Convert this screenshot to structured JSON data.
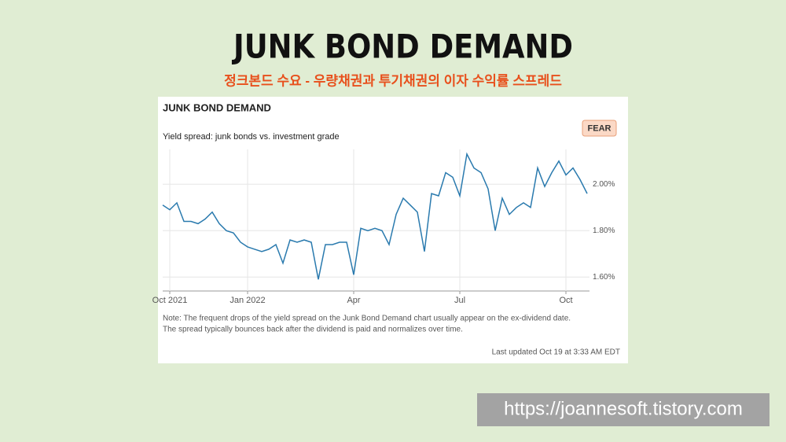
{
  "header": {
    "title": "JUNK BOND DEMAND",
    "subtitle": "정크본드 수요 - 우량채권과 투기채권의 이자 수익률 스프레드"
  },
  "chart_data": {
    "type": "line",
    "title": "JUNK BOND DEMAND",
    "subtitle": "Yield spread: junk bonds vs. investment grade",
    "badge": "FEAR",
    "categories": [
      null,
      "Oct 2021",
      null,
      null,
      null,
      null,
      null,
      null,
      null,
      null,
      null,
      null,
      "Jan 2022",
      null,
      null,
      null,
      null,
      null,
      null,
      null,
      null,
      null,
      null,
      null,
      null,
      null,
      null,
      "Apr",
      null,
      null,
      null,
      null,
      null,
      null,
      null,
      null,
      null,
      null,
      null,
      null,
      null,
      null,
      "Jul",
      null,
      null,
      null,
      null,
      null,
      null,
      null,
      null,
      null,
      null,
      null,
      null,
      null,
      null,
      "Oct",
      null,
      null,
      null
    ],
    "series": [
      {
        "name": "Yield spread",
        "color": "#2a7aae",
        "values": [
          1.91,
          1.89,
          1.92,
          1.84,
          1.84,
          1.83,
          1.85,
          1.88,
          1.83,
          1.8,
          1.79,
          1.75,
          1.73,
          1.72,
          1.71,
          1.72,
          1.74,
          1.66,
          1.76,
          1.75,
          1.76,
          1.75,
          1.59,
          1.74,
          1.74,
          1.75,
          1.75,
          1.61,
          1.81,
          1.8,
          1.81,
          1.8,
          1.74,
          1.87,
          1.94,
          1.91,
          1.88,
          1.71,
          1.96,
          1.95,
          2.05,
          2.03,
          1.95,
          2.13,
          2.07,
          2.05,
          1.98,
          1.8,
          1.94,
          1.87,
          1.9,
          1.92,
          1.9,
          2.07,
          1.99,
          2.05,
          2.1,
          2.04,
          2.07,
          2.02,
          1.96
        ]
      }
    ],
    "ylim": [
      1.54,
      2.15
    ],
    "yticks": [
      {
        "value": 1.6,
        "label": "1.60%"
      },
      {
        "value": 1.8,
        "label": "1.80%"
      },
      {
        "value": 2.0,
        "label": "2.00%"
      }
    ],
    "grid": true,
    "note": [
      "Note: The frequent drops of the yield spread on the Junk Bond Demand chart usually appear on the ex-dividend date.",
      "The spread typically bounces back after the dividend is paid and normalizes over time."
    ],
    "updated": "Last updated Oct 19 at 3:33 AM EDT"
  },
  "footer": {
    "url": "https://joannesoft.tistory.com"
  }
}
